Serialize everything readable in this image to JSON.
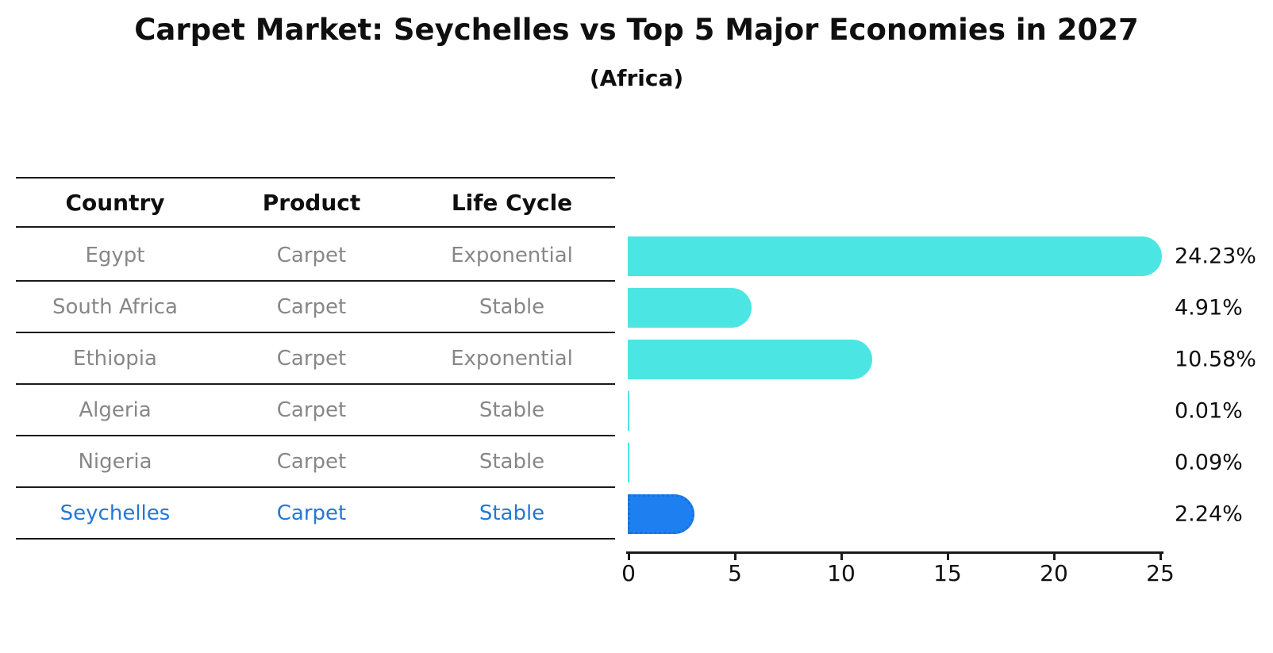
{
  "title": "Carpet Market: Seychelles vs Top 5 Major Economies in 2027",
  "subtitle": "(Africa)",
  "table": {
    "headers": [
      "Country",
      "Product",
      "Life Cycle"
    ],
    "rows": [
      {
        "country": "Egypt",
        "product": "Carpet",
        "life_cycle": "Exponential",
        "highlight": false
      },
      {
        "country": "South Africa",
        "product": "Carpet",
        "life_cycle": "Stable",
        "highlight": false
      },
      {
        "country": "Ethiopia",
        "product": "Carpet",
        "life_cycle": "Exponential",
        "highlight": false
      },
      {
        "country": "Algeria",
        "product": "Carpet",
        "life_cycle": "Stable",
        "highlight": false
      },
      {
        "country": "Nigeria",
        "product": "Carpet",
        "life_cycle": "Stable",
        "highlight": false
      },
      {
        "country": "Seychelles",
        "product": "Carpet",
        "life_cycle": "Stable",
        "highlight": true
      }
    ]
  },
  "chart_data": {
    "type": "bar",
    "orientation": "horizontal",
    "title": "Carpet Market: Seychelles vs Top 5 Major Economies in 2027",
    "subtitle": "(Africa)",
    "categories": [
      "Egypt",
      "South Africa",
      "Ethiopia",
      "Algeria",
      "Nigeria",
      "Seychelles"
    ],
    "values": [
      24.23,
      4.91,
      10.58,
      0.01,
      0.09,
      2.24
    ],
    "labels": [
      "24.23%",
      "4.91%",
      "10.58%",
      "0.01%",
      "0.09%",
      "2.24%"
    ],
    "unit": "%",
    "xlim": [
      0,
      25
    ],
    "x_ticks": [
      "0",
      "5",
      "10",
      "15",
      "20",
      "25"
    ],
    "grid": false,
    "legend": false,
    "bar_color": "#4BE6E3",
    "highlight_color": "#1E80F0",
    "highlight_border_color": "#1871dd",
    "highlight_text_color": "#2478d4",
    "highlight_index": 5
  }
}
